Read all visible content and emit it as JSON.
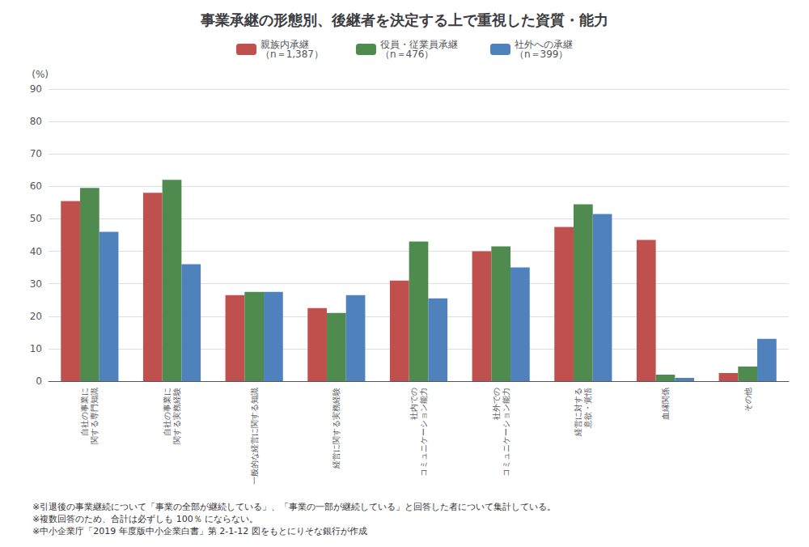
{
  "chart_data": {
    "type": "bar",
    "title": "事業承継の形態別、後継者を決定する上で重視した資質・能力",
    "ylabel": "(%)",
    "categories": [
      "自社の事業に\n関する専門知識",
      "自社の事業に\n関する実務経験",
      "一般的な経営に関する知識",
      "経営に関する実務経験",
      "社内での\nコミュニケーション能力",
      "社外での\nコミュニケーション能力",
      "経営に対する\n意欲・覚悟",
      "血縁関係",
      "その他"
    ],
    "series": [
      {
        "name": "親族内承継\n（n＝1,387）",
        "color": "#C0504D",
        "values": [
          55.5,
          58.0,
          26.5,
          22.5,
          31.0,
          40.0,
          47.5,
          43.5,
          2.5
        ]
      },
      {
        "name": "役員・従業員承継\n（n＝476）",
        "color": "#4F8A4F",
        "values": [
          59.5,
          62.0,
          27.5,
          21.0,
          43.0,
          41.5,
          54.5,
          2.0,
          4.5
        ]
      },
      {
        "name": "社外への承継\n（n＝399）",
        "color": "#4F81BD",
        "values": [
          46.0,
          36.0,
          27.5,
          26.5,
          25.5,
          35.0,
          51.5,
          1.0,
          13.0
        ]
      }
    ],
    "ylim": [
      0,
      90
    ],
    "yticks": [
      0,
      10,
      20,
      30,
      40,
      50,
      60,
      70,
      80,
      90
    ],
    "grid": true,
    "legend": "top",
    "annotations": [
      "※引退後の事業継続について「事業の全部が継続している」、「事業の一部が継続している」と回答した者について集計している。",
      "※複数回答のため、合計は必ずしも 100％ にならない。",
      "※中小企業庁「2019 年度版中小企業白書」第 2-1-12 図をもとにりそな銀行が作成"
    ]
  }
}
